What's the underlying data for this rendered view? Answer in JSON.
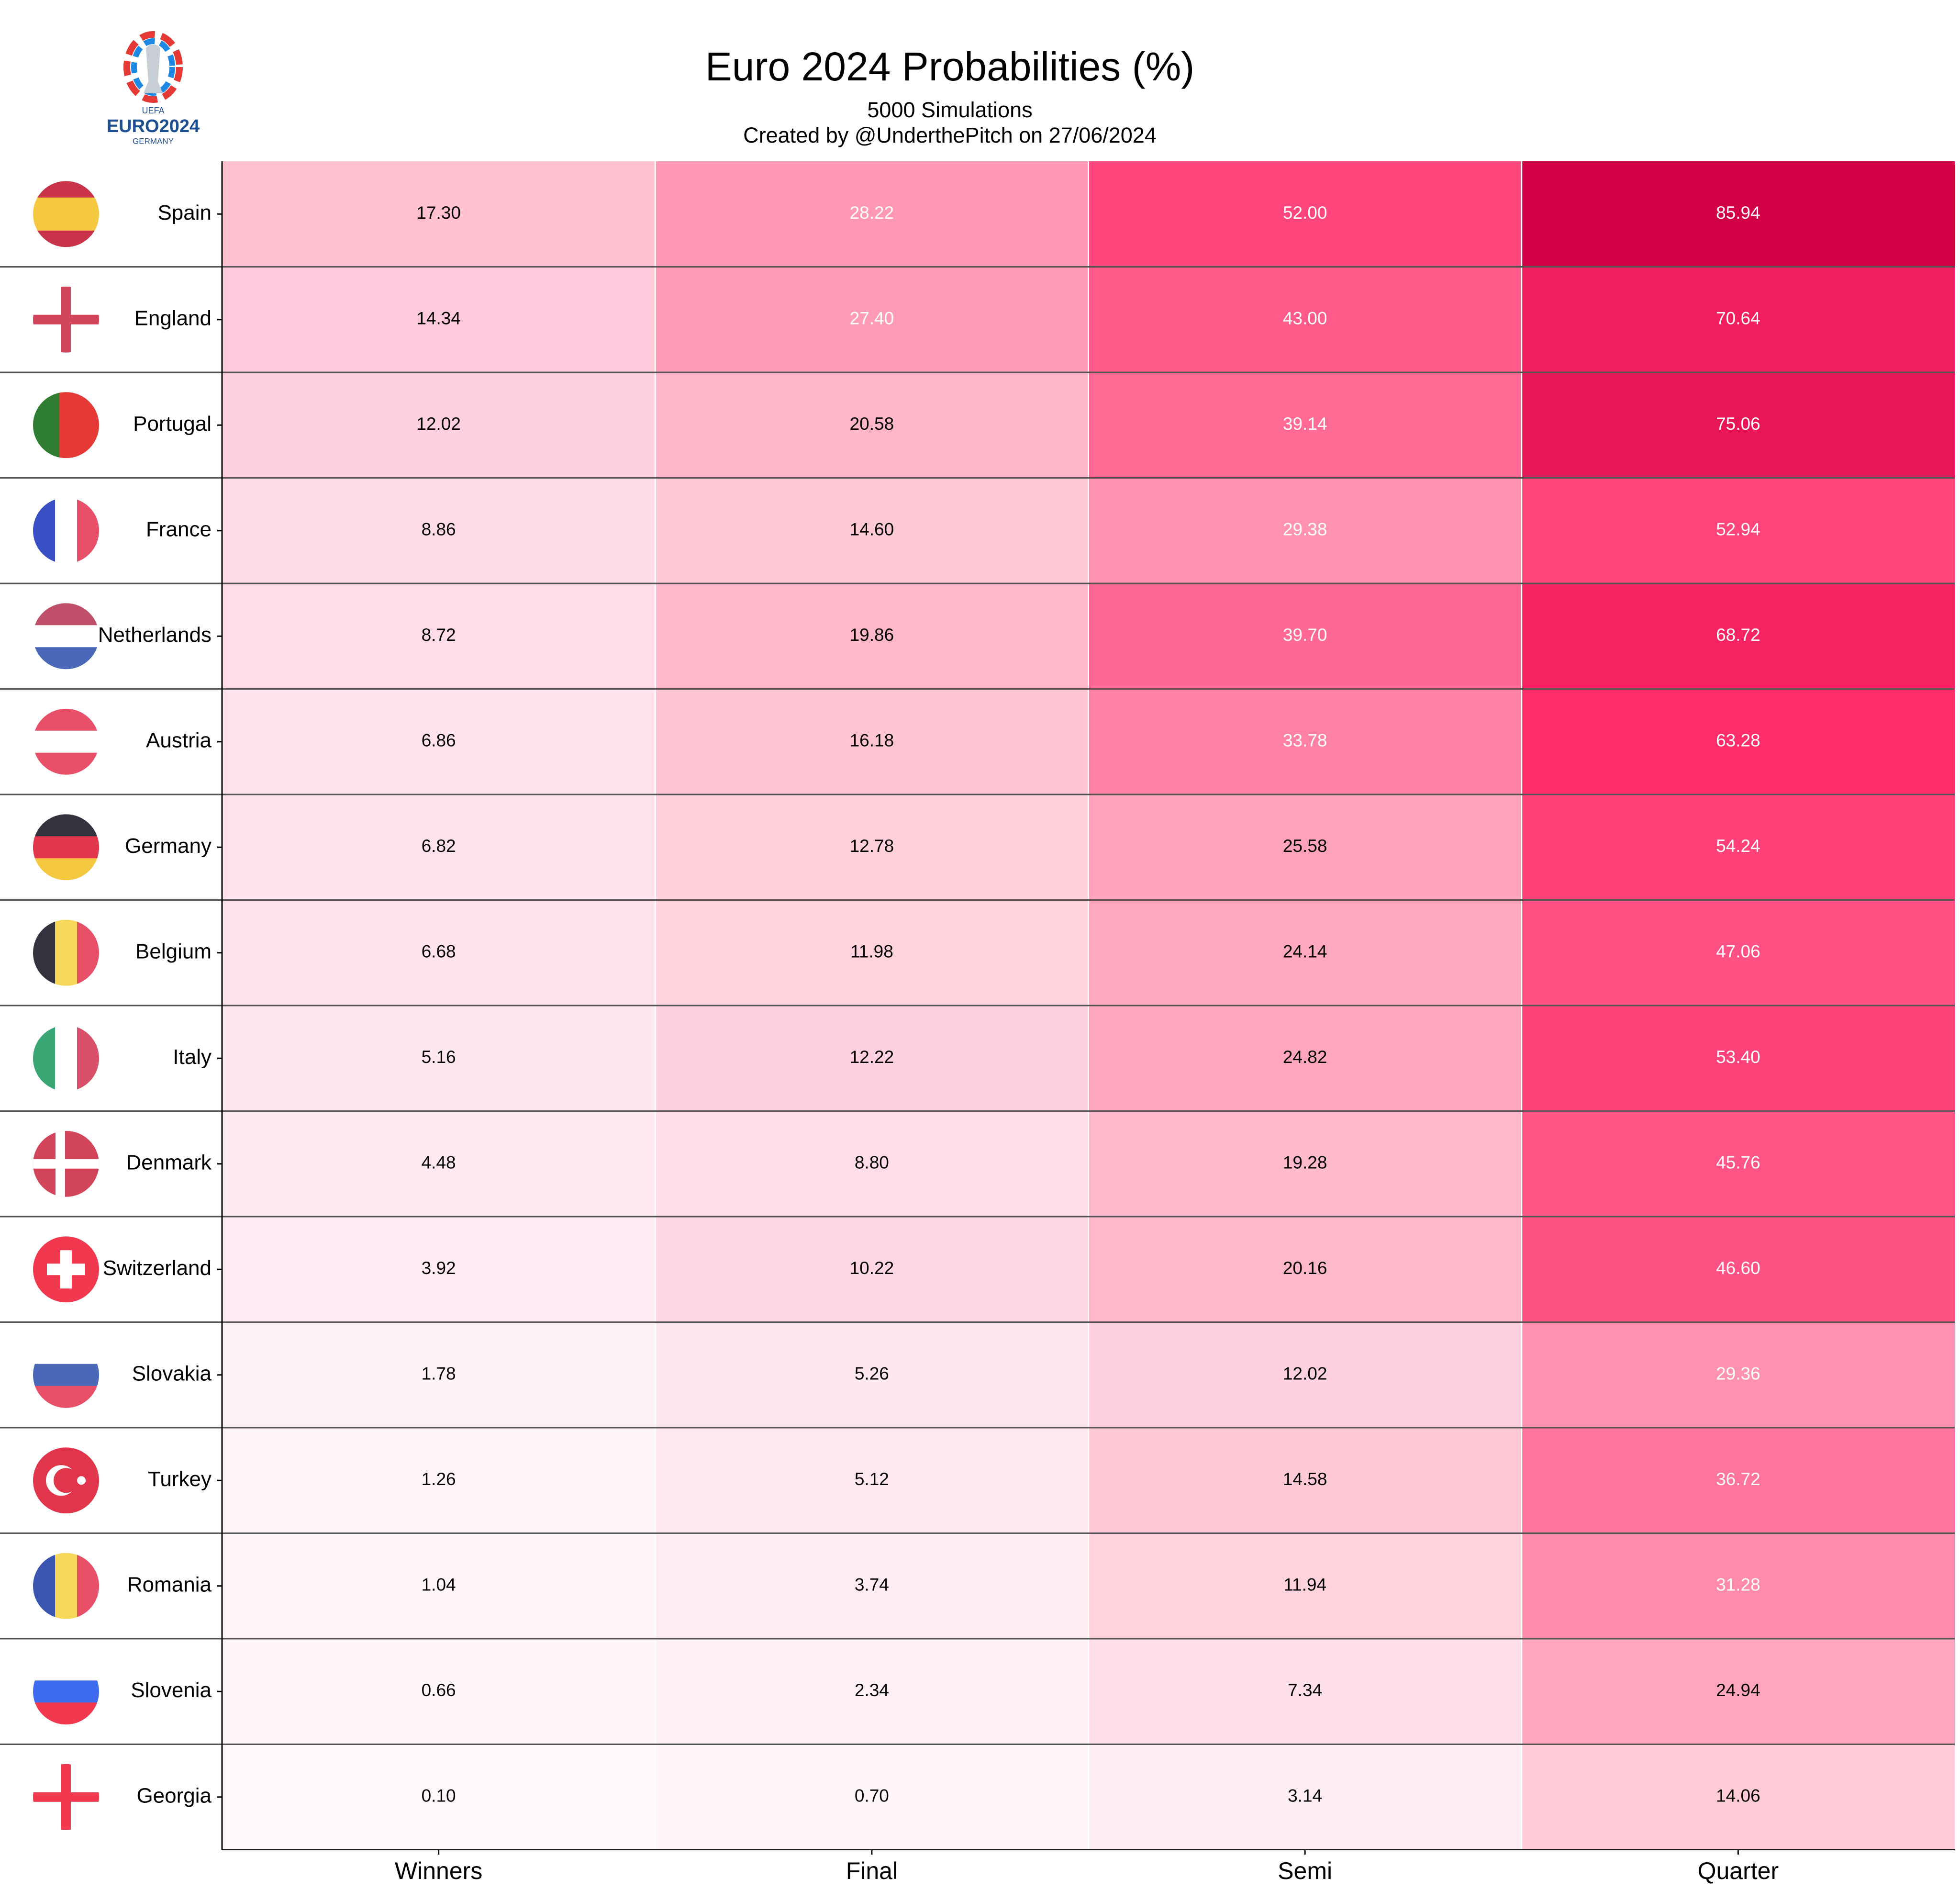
{
  "chart_data": {
    "type": "heatmap",
    "title": "Euro 2024 Probabilities (%)",
    "subtitle": [
      "5000 Simulations",
      "Created by @UnderthePitch on 27/06/2024"
    ],
    "logo_text": [
      "UEFA",
      "EURO2024",
      "GERMANY"
    ],
    "rows": [
      "Spain",
      "England",
      "Portugal",
      "France",
      "Netherlands",
      "Austria",
      "Germany",
      "Belgium",
      "Italy",
      "Denmark",
      "Switzerland",
      "Slovakia",
      "Turkey",
      "Romania",
      "Slovenia",
      "Georgia"
    ],
    "columns": [
      "Winners",
      "Final",
      "Semi",
      "Quarter"
    ],
    "values": [
      [
        17.3,
        28.22,
        52,
        85.94
      ],
      [
        14.34,
        27.4,
        43,
        70.64
      ],
      [
        12.02,
        20.58,
        39.14,
        75.06
      ],
      [
        8.86,
        14.6,
        29.38,
        52.94
      ],
      [
        8.72,
        19.86,
        39.7,
        68.72
      ],
      [
        6.86,
        16.18,
        33.78,
        63.28
      ],
      [
        6.82,
        12.78,
        25.58,
        54.24
      ],
      [
        6.68,
        11.98,
        24.14,
        47.06
      ],
      [
        5.16,
        12.22,
        24.82,
        53.4
      ],
      [
        4.48,
        8.8,
        19.28,
        45.76
      ],
      [
        3.92,
        10.22,
        20.16,
        46.6
      ],
      [
        1.78,
        5.26,
        12.02,
        29.36
      ],
      [
        1.26,
        5.12,
        14.58,
        36.72
      ],
      [
        1.04,
        3.74,
        11.94,
        31.28
      ],
      [
        0.66,
        2.34,
        7.34,
        24.94
      ],
      [
        0.1,
        0.7,
        3.14,
        14.06
      ]
    ],
    "value_labels": [
      [
        "17.30",
        "28.22",
        "52.00",
        "85.94"
      ],
      [
        "14.34",
        "27.40",
        "43.00",
        "70.64"
      ],
      [
        "12.02",
        "20.58",
        "39.14",
        "75.06"
      ],
      [
        "8.86",
        "14.60",
        "29.38",
        "52.94"
      ],
      [
        "8.72",
        "19.86",
        "39.70",
        "68.72"
      ],
      [
        "6.86",
        "16.18",
        "33.78",
        "63.28"
      ],
      [
        "6.82",
        "12.78",
        "25.58",
        "54.24"
      ],
      [
        "6.68",
        "11.98",
        "24.14",
        "47.06"
      ],
      [
        "5.16",
        "12.22",
        "24.82",
        "53.40"
      ],
      [
        "4.48",
        "8.80",
        "19.28",
        "45.76"
      ],
      [
        "3.92",
        "10.22",
        "20.16",
        "46.60"
      ],
      [
        "1.78",
        "5.26",
        "12.02",
        "29.36"
      ],
      [
        "1.26",
        "5.12",
        "14.58",
        "36.72"
      ],
      [
        "1.04",
        "3.74",
        "11.94",
        "31.28"
      ],
      [
        "0.66",
        "2.34",
        "7.34",
        "24.94"
      ],
      [
        "0.10",
        "0.70",
        "3.14",
        "14.06"
      ]
    ],
    "colormap": [
      "#fff8fa",
      "#ffb3c8",
      "#ff5a8a",
      "#ff2a68",
      "#d10047"
    ],
    "clim": [
      0,
      86
    ]
  }
}
